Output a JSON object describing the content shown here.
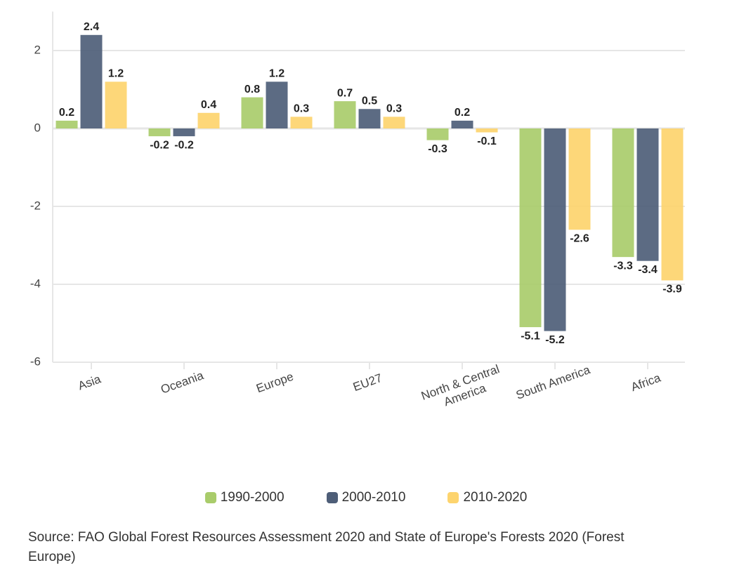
{
  "chart_data": {
    "type": "bar",
    "categories": [
      "Asia",
      "Oceania",
      "Europe",
      "EU27",
      "North & Central America",
      "South America",
      "Africa"
    ],
    "series": [
      {
        "name": "1990-2000",
        "color": "#a9cc6b",
        "values": [
          0.2,
          -0.2,
          0.8,
          0.7,
          -0.3,
          -5.1,
          -3.3
        ]
      },
      {
        "name": "2000-2010",
        "color": "#4e5e78",
        "values": [
          2.4,
          -0.2,
          1.2,
          0.5,
          0.2,
          -5.2,
          -3.4
        ]
      },
      {
        "name": "2010-2020",
        "color": "#fdd46e",
        "values": [
          1.2,
          0.4,
          0.3,
          0.3,
          -0.1,
          -2.6,
          -3.9
        ]
      }
    ],
    "ylim": [
      -6,
      3
    ],
    "yticks": [
      -6,
      -4,
      -2,
      0,
      2
    ],
    "grid": true,
    "legend": "bottom",
    "source": "Source: FAO Global Forest Resources Assessment 2020 and State of Europe's Forests 2020 (Forest Europe)"
  }
}
